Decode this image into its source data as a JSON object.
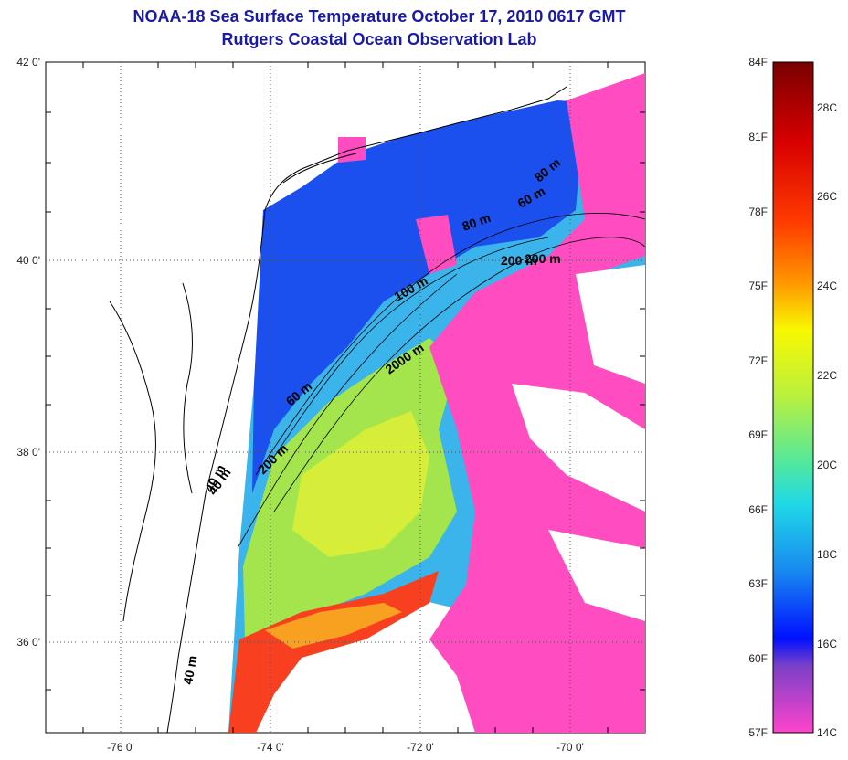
{
  "titles": {
    "line1": "NOAA-18 Sea Surface Temperature October 17, 2010 0617 GMT",
    "line2": "Rutgers Coastal Ocean Observation Lab"
  },
  "map": {
    "lon_ticks": [
      "-76 0'",
      "-74 0'",
      "-72 0'",
      "-70 0'"
    ],
    "lat_ticks": [
      "42 0'",
      "40 0'",
      "38 0'",
      "36 0'"
    ],
    "contour_labels": [
      "40 m",
      "60 m",
      "80 m",
      "100 m",
      "200 m",
      "2000 m",
      "200 m",
      "60 m",
      "80 m",
      "200 m",
      "40 m",
      "40 m"
    ],
    "colors": {
      "land": "#ffffff",
      "cold_water": "#1848f0",
      "mid_water": "#38b8e8",
      "warm_green": "#a8e848",
      "warm_yellow": "#d8f038",
      "gulf_stream": "#f83a18",
      "cloud_magenta": "#ff4cc0"
    }
  },
  "colorbar": {
    "fahrenheit_labels": [
      "84F",
      "81F",
      "78F",
      "75F",
      "72F",
      "69F",
      "66F",
      "63F",
      "60F",
      "57F"
    ],
    "celsius_labels": [
      "28C",
      "26C",
      "24C",
      "22C",
      "20C",
      "18C",
      "16C",
      "14C"
    ]
  }
}
